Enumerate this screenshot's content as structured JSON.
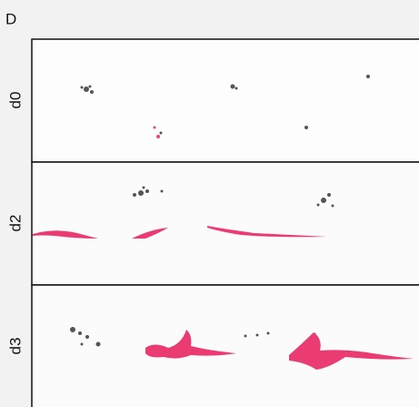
{
  "panel_label": "D",
  "rows": [
    {
      "label": "d0"
    },
    {
      "label": "d2"
    },
    {
      "label": "d3"
    }
  ]
}
